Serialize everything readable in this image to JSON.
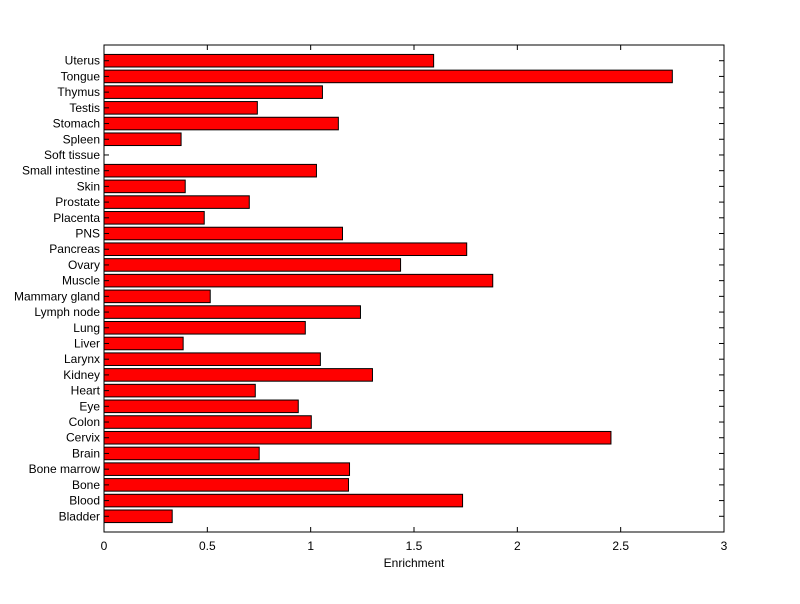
{
  "chart_data": {
    "type": "bar",
    "orientation": "horizontal",
    "title": "",
    "xlabel": "Enrichment",
    "ylabel": "",
    "xlim": [
      0,
      3
    ],
    "xticks": [
      "0",
      "0.5",
      "1",
      "1.5",
      "2",
      "2.5",
      "3"
    ],
    "grid": false,
    "bar_color": "#ff0000",
    "categories": [
      "Bladder",
      "Blood",
      "Bone",
      "Bone marrow",
      "Brain",
      "Cervix",
      "Colon",
      "Eye",
      "Heart",
      "Kidney",
      "Larynx",
      "Liver",
      "Lung",
      "Lymph node",
      "Mammary gland",
      "Muscle",
      "Ovary",
      "Pancreas",
      "PNS",
      "Placenta",
      "Prostate",
      "Skin",
      "Small intestine",
      "Soft tissue",
      "Spleen",
      "Stomach",
      "Testis",
      "Thymus",
      "Tongue",
      "Uterus"
    ],
    "values": [
      0.33,
      1.735,
      1.183,
      1.188,
      0.751,
      2.453,
      1.003,
      0.94,
      0.732,
      1.299,
      1.047,
      0.383,
      0.974,
      1.241,
      0.514,
      1.881,
      1.435,
      1.755,
      1.154,
      0.485,
      0.703,
      0.393,
      1.028,
      0,
      0.373,
      1.134,
      0.742,
      1.057,
      2.75,
      1.595
    ]
  }
}
